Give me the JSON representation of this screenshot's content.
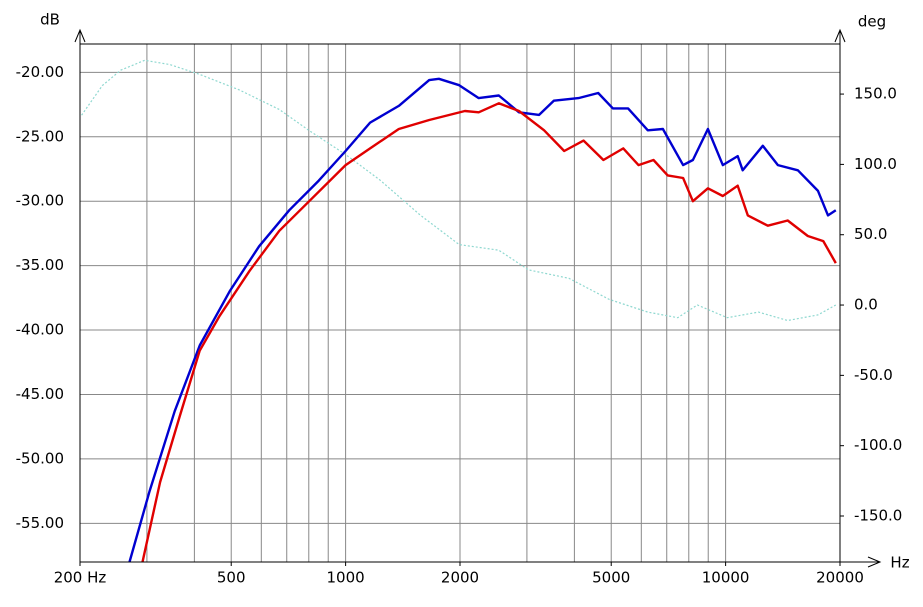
{
  "chart_data": {
    "type": "line",
    "x_unit_label": "Hz",
    "y_unit_label": "dB",
    "y2_unit_label": "deg",
    "xscale": "log",
    "xlim": [
      200,
      20000
    ],
    "xticks": [
      {
        "value": 200,
        "label": "200 Hz"
      },
      500,
      1000,
      2000,
      5000,
      10000,
      20000
    ],
    "xgrid": [
      300,
      400,
      500,
      600,
      700,
      800,
      900,
      1000,
      2000,
      3000,
      4000,
      5000,
      6000,
      7000,
      8000,
      9000,
      10000,
      20000
    ],
    "ylim": [
      -58.0,
      -17.8
    ],
    "yticks": [
      {
        "value": -20,
        "label": "-20.00"
      },
      {
        "value": -25,
        "label": "-25.00"
      },
      {
        "value": -30,
        "label": "-30.00"
      },
      {
        "value": -35,
        "label": "-35.00"
      },
      {
        "value": -40,
        "label": "-40.00"
      },
      {
        "value": -45,
        "label": "-45.00"
      },
      {
        "value": -50,
        "label": "-50.00"
      },
      {
        "value": -55,
        "label": "-55.00"
      }
    ],
    "y2lim": [
      -182.7,
      185.6
    ],
    "y2ticks": [
      {
        "value": 150,
        "label": "150.0"
      },
      {
        "value": 100,
        "label": "100.0"
      },
      {
        "value": 50,
        "label": "50.0"
      },
      {
        "value": 0,
        "label": "0.0"
      },
      {
        "value": -50,
        "label": "-50.0"
      },
      {
        "value": -100,
        "label": "-100.0"
      },
      {
        "value": -150,
        "label": "-150.0"
      }
    ],
    "grid": true,
    "series": [
      {
        "color": "#0000d0",
        "line_style": "solid",
        "x": [
          270,
          305,
          355,
          413,
          495,
          592,
          711,
          850,
          1000,
          1160,
          1380,
          1660,
          1760,
          1990,
          2240,
          2530,
          2860,
          3230,
          3530,
          4100,
          4620,
          5050,
          5540,
          6240,
          6840,
          7730,
          8200,
          8980,
          9830,
          10760,
          11090,
          12530,
          13730,
          15500,
          17500,
          18600,
          19500
        ],
        "values": [
          -58.0,
          -52.5,
          -46.3,
          -41.2,
          -37.0,
          -33.5,
          -30.7,
          -28.4,
          -26.1,
          -23.9,
          -22.6,
          -20.6,
          -20.5,
          -21.0,
          -22.0,
          -21.8,
          -23.1,
          -23.3,
          -22.2,
          -22.0,
          -21.6,
          -22.8,
          -22.8,
          -24.5,
          -24.4,
          -27.2,
          -26.8,
          -24.4,
          -27.2,
          -26.5,
          -27.6,
          -25.7,
          -27.2,
          -27.6,
          -29.2,
          -31.1,
          -30.7
        ]
      },
      {
        "color": "#e00000",
        "line_style": "solid",
        "x": [
          292,
          325,
          366,
          413,
          466,
          559,
          669,
          802,
          1000,
          1160,
          1380,
          1660,
          2060,
          2240,
          2530,
          2860,
          3330,
          3760,
          4230,
          4770,
          5380,
          5900,
          6460,
          7040,
          7730,
          8200,
          8980,
          9830,
          10760,
          11440,
          12910,
          14570,
          16450,
          18070,
          19500
        ],
        "values": [
          -58.0,
          -51.8,
          -46.7,
          -41.6,
          -38.9,
          -35.4,
          -32.3,
          -30.0,
          -27.2,
          -25.9,
          -24.4,
          -23.7,
          -23.0,
          -23.1,
          -22.4,
          -23.0,
          -24.5,
          -26.1,
          -25.3,
          -26.8,
          -25.9,
          -27.2,
          -26.8,
          -28.0,
          -28.2,
          -30.0,
          -29.0,
          -29.6,
          -28.8,
          -31.1,
          -31.9,
          -31.5,
          -32.7,
          -33.1,
          -34.8
        ]
      },
      {
        "color": "#8fd8d0",
        "line_style": "dotted",
        "axis": "y2",
        "x": [
          202,
          229,
          256,
          296,
          344,
          413,
          525,
          669,
          802,
          1000,
          1230,
          1570,
          1990,
          2530,
          3030,
          3870,
          4940,
          6240,
          7480,
          8430,
          10100,
          12200,
          14570,
          17500,
          19500
        ],
        "values": [
          135,
          156,
          167,
          174,
          171,
          164,
          153,
          139,
          124,
          107,
          89,
          64,
          43,
          39,
          25,
          19,
          4,
          -5,
          -9,
          0,
          -9,
          -5,
          -11,
          -7,
          0
        ]
      }
    ]
  }
}
